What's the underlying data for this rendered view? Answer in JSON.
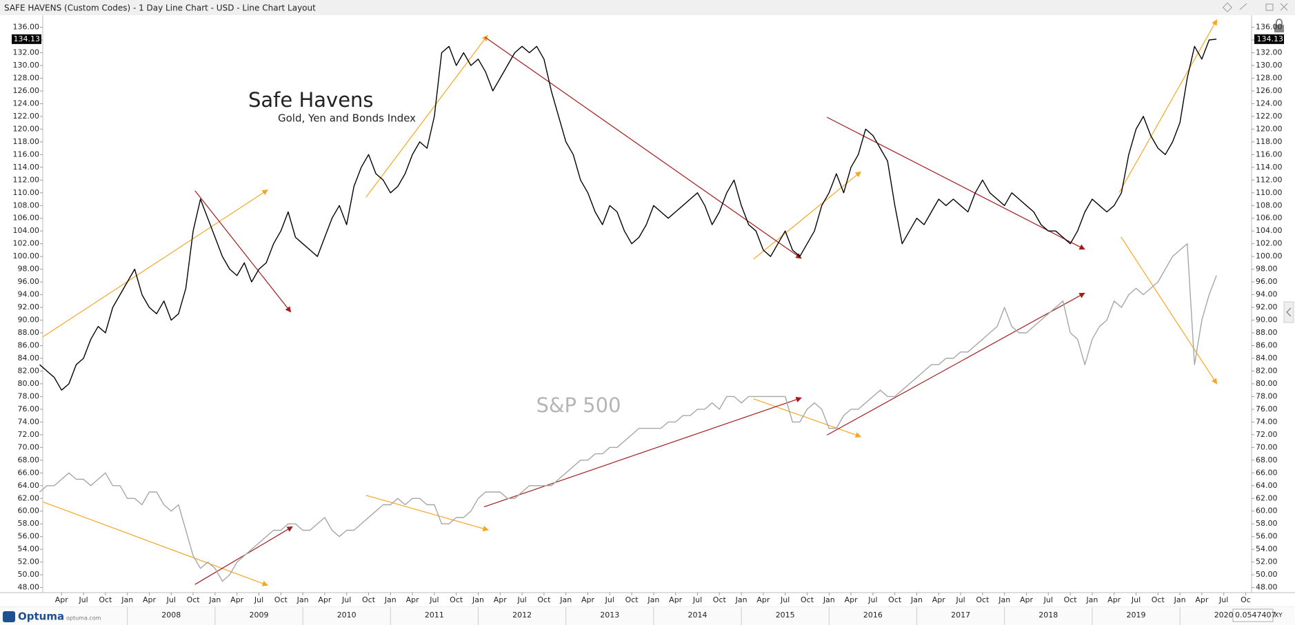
{
  "chart_data": {
    "type": "line",
    "title": "SAFE HAVENS (Custom Codes) - 1 Day Line Chart - USD - Line Chart Layout",
    "subtitle": "Gold, Yen and Bonds Index",
    "x": [
      "2007-01",
      "2007-02",
      "2007-03",
      "2007-04",
      "2007-05",
      "2007-06",
      "2007-07",
      "2007-08",
      "2007-09",
      "2007-10",
      "2007-11",
      "2007-12",
      "2008-01",
      "2008-02",
      "2008-03",
      "2008-04",
      "2008-05",
      "2008-06",
      "2008-07",
      "2008-08",
      "2008-09",
      "2008-10",
      "2008-11",
      "2008-12",
      "2009-01",
      "2009-02",
      "2009-03",
      "2009-04",
      "2009-05",
      "2009-06",
      "2009-07",
      "2009-08",
      "2009-09",
      "2009-10",
      "2009-11",
      "2009-12",
      "2010-01",
      "2010-02",
      "2010-03",
      "2010-04",
      "2010-05",
      "2010-06",
      "2010-07",
      "2010-08",
      "2010-09",
      "2010-10",
      "2010-11",
      "2010-12",
      "2011-01",
      "2011-02",
      "2011-03",
      "2011-04",
      "2011-05",
      "2011-06",
      "2011-07",
      "2011-08",
      "2011-09",
      "2011-10",
      "2011-11",
      "2011-12",
      "2012-01",
      "2012-02",
      "2012-03",
      "2012-04",
      "2012-05",
      "2012-06",
      "2012-07",
      "2012-08",
      "2012-09",
      "2012-10",
      "2012-11",
      "2012-12",
      "2013-01",
      "2013-02",
      "2013-03",
      "2013-04",
      "2013-05",
      "2013-06",
      "2013-07",
      "2013-08",
      "2013-09",
      "2013-10",
      "2013-11",
      "2013-12",
      "2014-01",
      "2014-02",
      "2014-03",
      "2014-04",
      "2014-05",
      "2014-06",
      "2014-07",
      "2014-08",
      "2014-09",
      "2014-10",
      "2014-11",
      "2014-12",
      "2015-01",
      "2015-02",
      "2015-03",
      "2015-04",
      "2015-05",
      "2015-06",
      "2015-07",
      "2015-08",
      "2015-09",
      "2015-10",
      "2015-11",
      "2015-12",
      "2016-01",
      "2016-02",
      "2016-03",
      "2016-04",
      "2016-05",
      "2016-06",
      "2016-07",
      "2016-08",
      "2016-09",
      "2016-10",
      "2016-11",
      "2016-12",
      "2017-01",
      "2017-02",
      "2017-03",
      "2017-04",
      "2017-05",
      "2017-06",
      "2017-07",
      "2017-08",
      "2017-09",
      "2017-10",
      "2017-11",
      "2017-12",
      "2018-01",
      "2018-02",
      "2018-03",
      "2018-04",
      "2018-05",
      "2018-06",
      "2018-07",
      "2018-08",
      "2018-09",
      "2018-10",
      "2018-11",
      "2018-12",
      "2019-01",
      "2019-02",
      "2019-03",
      "2019-04",
      "2019-05",
      "2019-06",
      "2019-07",
      "2019-08",
      "2019-09",
      "2019-10",
      "2019-11",
      "2019-12",
      "2020-01",
      "2020-02",
      "2020-03",
      "2020-04",
      "2020-05",
      "2020-06"
    ],
    "series": [
      {
        "name": "Safe Havens",
        "color": "#000000",
        "values": [
          83,
          82,
          81,
          79,
          80,
          83,
          84,
          87,
          89,
          88,
          92,
          94,
          96,
          98,
          94,
          92,
          91,
          93,
          90,
          91,
          95,
          104,
          109,
          106,
          103,
          100,
          98,
          97,
          99,
          96,
          98,
          99,
          102,
          104,
          107,
          103,
          102,
          101,
          100,
          103,
          106,
          108,
          105,
          111,
          114,
          116,
          113,
          112,
          110,
          111,
          113,
          116,
          118,
          117,
          122,
          132,
          133,
          130,
          132,
          130,
          131,
          129,
          126,
          128,
          130,
          132,
          133,
          132,
          133,
          131,
          126,
          122,
          118,
          116,
          112,
          110,
          107,
          105,
          108,
          107,
          104,
          102,
          103,
          105,
          108,
          107,
          106,
          107,
          108,
          109,
          110,
          108,
          105,
          107,
          110,
          112,
          108,
          105,
          104,
          101,
          100,
          102,
          104,
          101,
          100,
          102,
          104,
          108,
          110,
          113,
          110,
          114,
          116,
          120,
          119,
          117,
          115,
          108,
          102,
          104,
          106,
          105,
          107,
          109,
          108,
          109,
          108,
          107,
          110,
          112,
          110,
          109,
          108,
          110,
          109,
          108,
          107,
          105,
          104,
          104,
          103,
          102,
          104,
          107,
          109,
          108,
          107,
          108,
          110,
          116,
          120,
          122,
          119,
          117,
          116,
          118,
          121,
          128,
          133,
          131,
          134,
          134.13
        ]
      },
      {
        "name": "S&P 500",
        "color": "#a6a6a6",
        "values": [
          63,
          64,
          64,
          65,
          66,
          65,
          65,
          64,
          65,
          66,
          64,
          64,
          62,
          62,
          61,
          63,
          63,
          61,
          60,
          61,
          57,
          53,
          51,
          52,
          51,
          49,
          50,
          52,
          53,
          54,
          55,
          56,
          57,
          57,
          58,
          58,
          57,
          57,
          58,
          59,
          57,
          56,
          57,
          57,
          58,
          59,
          60,
          61,
          61,
          62,
          61,
          62,
          62,
          61,
          61,
          58,
          58,
          59,
          59,
          60,
          62,
          63,
          63,
          63,
          62,
          62,
          63,
          64,
          64,
          64,
          64,
          65,
          66,
          67,
          68,
          68,
          69,
          69,
          70,
          70,
          71,
          72,
          73,
          73,
          73,
          73,
          74,
          74,
          75,
          75,
          76,
          76,
          77,
          76,
          78,
          78,
          77,
          78,
          78,
          78,
          78,
          78,
          78,
          74,
          74,
          76,
          77,
          76,
          73,
          73,
          75,
          76,
          76,
          77,
          78,
          79,
          78,
          78,
          79,
          80,
          81,
          82,
          83,
          83,
          84,
          84,
          85,
          85,
          86,
          87,
          88,
          89,
          92,
          89,
          88,
          88,
          89,
          90,
          91,
          92,
          93,
          88,
          87,
          83,
          87,
          89,
          90,
          93,
          92,
          94,
          95,
          94,
          95,
          96,
          98,
          100,
          101,
          102,
          83,
          90,
          94,
          97
        ]
      }
    ],
    "ylim": [
      47.2,
      137.9
    ],
    "yticks": [
      {
        "value": 48,
        "label": "48.00"
      },
      {
        "value": 50,
        "label": "50.00"
      },
      {
        "value": 52,
        "label": "52.00"
      },
      {
        "value": 54,
        "label": "54.00"
      },
      {
        "value": 56,
        "label": "56.00"
      },
      {
        "value": 58,
        "label": "58.00"
      },
      {
        "value": 60,
        "label": "60.00"
      },
      {
        "value": 62,
        "label": "62.00"
      },
      {
        "value": 64,
        "label": "64.00"
      },
      {
        "value": 66,
        "label": "66.00"
      },
      {
        "value": 68,
        "label": "68.00"
      },
      {
        "value": 70,
        "label": "70.00"
      },
      {
        "value": 72,
        "label": "72.00"
      },
      {
        "value": 74,
        "label": "74.00"
      },
      {
        "value": 76,
        "label": "76.00"
      },
      {
        "value": 78,
        "label": "78.00"
      },
      {
        "value": 80,
        "label": "80.00"
      },
      {
        "value": 82,
        "label": "82.00"
      },
      {
        "value": 84,
        "label": "84.00"
      },
      {
        "value": 86,
        "label": "86.00"
      },
      {
        "value": 88,
        "label": "88.00"
      },
      {
        "value": 90,
        "label": "90.00"
      },
      {
        "value": 92,
        "label": "92.00"
      },
      {
        "value": 94,
        "label": "94.00"
      },
      {
        "value": 96,
        "label": "96.00"
      },
      {
        "value": 98,
        "label": "98.00"
      },
      {
        "value": 100,
        "label": "100.00"
      },
      {
        "value": 102,
        "label": "102.00"
      },
      {
        "value": 104,
        "label": "104.00"
      },
      {
        "value": 106,
        "label": "106.00"
      },
      {
        "value": 108,
        "label": "108.00"
      },
      {
        "value": 110,
        "label": "110.00"
      },
      {
        "value": 112,
        "label": "112.00"
      },
      {
        "value": 114,
        "label": "114.00"
      },
      {
        "value": 116,
        "label": "116.00"
      },
      {
        "value": 118,
        "label": "118.00"
      },
      {
        "value": 120,
        "label": "120.00"
      },
      {
        "value": 122,
        "label": "122.00"
      },
      {
        "value": 124,
        "label": "124.00"
      },
      {
        "value": 126,
        "label": "126.00"
      },
      {
        "value": 128,
        "label": "128.00"
      },
      {
        "value": 130,
        "label": "130.00"
      },
      {
        "value": 132,
        "label": "132.00"
      },
      {
        "value": 134,
        "label": "134.00"
      },
      {
        "value": 136,
        "label": "136.00"
      }
    ],
    "xticks": [
      {
        "value": "2007-04",
        "label": "Apr"
      },
      {
        "value": "2007-07",
        "label": "Jul"
      },
      {
        "value": "2007-10",
        "label": "Oct"
      },
      {
        "value": "2008-01",
        "label": "Jan"
      },
      {
        "value": "2008-04",
        "label": "Apr"
      },
      {
        "value": "2008-07",
        "label": "Jul"
      },
      {
        "value": "2008-10",
        "label": "Oct"
      },
      {
        "value": "2009-01",
        "label": "Jan"
      },
      {
        "value": "2009-04",
        "label": "Apr"
      },
      {
        "value": "2009-07",
        "label": "Jul"
      },
      {
        "value": "2009-10",
        "label": "Oct"
      },
      {
        "value": "2010-01",
        "label": "Jan"
      },
      {
        "value": "2010-04",
        "label": "Apr"
      },
      {
        "value": "2010-07",
        "label": "Jul"
      },
      {
        "value": "2010-10",
        "label": "Oct"
      },
      {
        "value": "2011-01",
        "label": "Jan"
      },
      {
        "value": "2011-04",
        "label": "Apr"
      },
      {
        "value": "2011-07",
        "label": "Jul"
      },
      {
        "value": "2011-10",
        "label": "Oct"
      },
      {
        "value": "2012-01",
        "label": "Jan"
      },
      {
        "value": "2012-04",
        "label": "Apr"
      },
      {
        "value": "2012-07",
        "label": "Jul"
      },
      {
        "value": "2012-10",
        "label": "Oct"
      },
      {
        "value": "2013-01",
        "label": "Jan"
      },
      {
        "value": "2013-04",
        "label": "Apr"
      },
      {
        "value": "2013-07",
        "label": "Jul"
      },
      {
        "value": "2013-10",
        "label": "Oct"
      },
      {
        "value": "2014-01",
        "label": "Jan"
      },
      {
        "value": "2014-04",
        "label": "Apr"
      },
      {
        "value": "2014-07",
        "label": "Jul"
      },
      {
        "value": "2014-10",
        "label": "Oct"
      },
      {
        "value": "2015-01",
        "label": "Jan"
      },
      {
        "value": "2015-04",
        "label": "Apr"
      },
      {
        "value": "2015-07",
        "label": "Jul"
      },
      {
        "value": "2015-10",
        "label": "Oct"
      },
      {
        "value": "2016-01",
        "label": "Jan"
      },
      {
        "value": "2016-04",
        "label": "Apr"
      },
      {
        "value": "2016-07",
        "label": "Jul"
      },
      {
        "value": "2016-10",
        "label": "Oct"
      },
      {
        "value": "2017-01",
        "label": "Jan"
      },
      {
        "value": "2017-04",
        "label": "Apr"
      },
      {
        "value": "2017-07",
        "label": "Jul"
      },
      {
        "value": "2017-10",
        "label": "Oct"
      },
      {
        "value": "2018-01",
        "label": "Jan"
      },
      {
        "value": "2018-04",
        "label": "Apr"
      },
      {
        "value": "2018-07",
        "label": "Jul"
      },
      {
        "value": "2018-10",
        "label": "Oct"
      },
      {
        "value": "2019-01",
        "label": "Jan"
      },
      {
        "value": "2019-04",
        "label": "Apr"
      },
      {
        "value": "2019-07",
        "label": "Jul"
      },
      {
        "value": "2019-10",
        "label": "Oct"
      },
      {
        "value": "2020-01",
        "label": "Jan"
      },
      {
        "value": "2020-04",
        "label": "Apr"
      },
      {
        "value": "2020-07",
        "label": "Jul"
      },
      {
        "value": "2020-10",
        "label": "Oc"
      }
    ],
    "year_labels": [
      2008,
      2009,
      2010,
      2011,
      2012,
      2013,
      2014,
      2015,
      2016,
      2017,
      2018,
      2019,
      2020
    ],
    "grid": false
  },
  "ui": {
    "logo": "Optuma",
    "website": "optuma.com",
    "readout": "0.0547407",
    "mode_button": "XY"
  }
}
